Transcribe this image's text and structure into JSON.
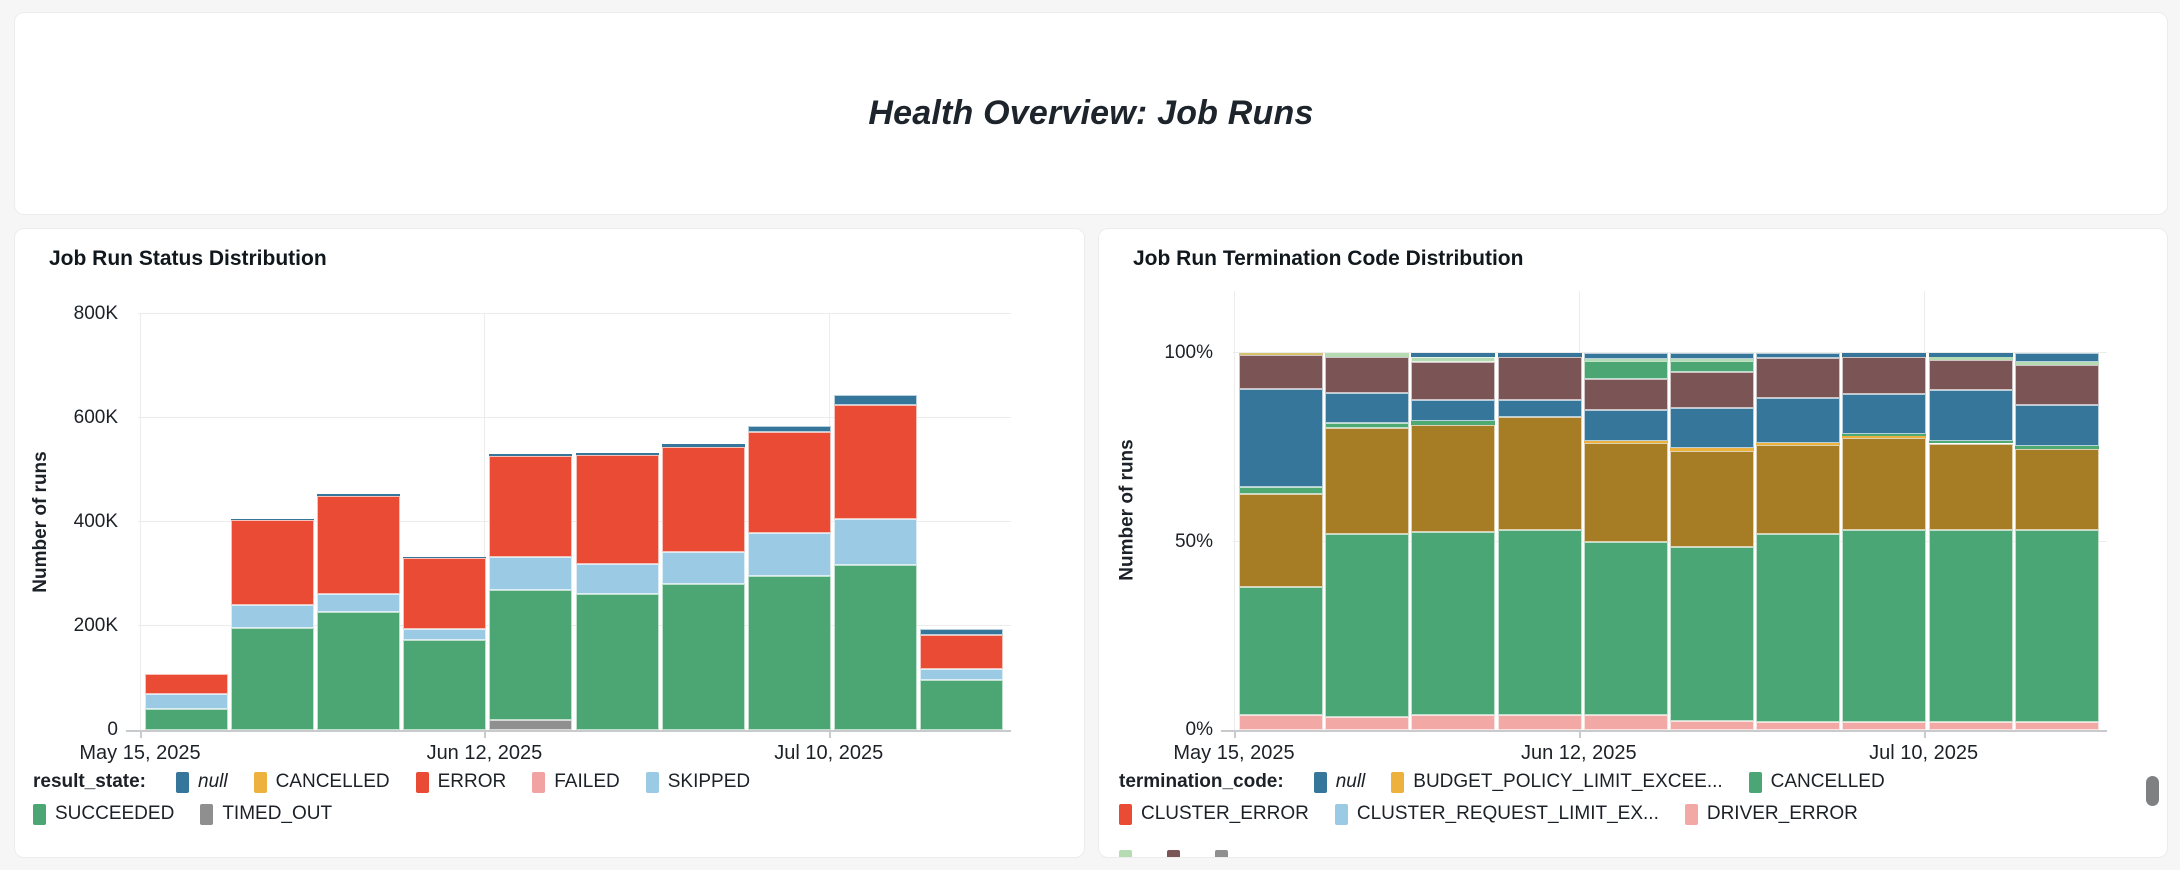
{
  "page": {
    "background": "#f6f6f7",
    "card_color": "#ffffff"
  },
  "header": {
    "title": "Health Overview: Job Runs"
  },
  "scrollbar": {
    "present": true,
    "color": "#7f8082"
  },
  "chart_data": [
    {
      "type": "bar",
      "stacked": true,
      "title": "Job Run Status Distribution",
      "xlabel": "",
      "ylabel": "Number of runs",
      "ylim": [
        0,
        800000
      ],
      "y_tick_labels": [
        "0",
        "200K",
        "400K",
        "600K",
        "800K"
      ],
      "x_tick_labels": [
        "May 15, 2025",
        "Jun 12, 2025",
        "Jul 10, 2025"
      ],
      "x_tick_slots": [
        0,
        4,
        8
      ],
      "n_bars": 10,
      "grid": true,
      "series": [
        {
          "name": "TIMED_OUT",
          "color": "#8F8F8F",
          "values": [
            0,
            0,
            0,
            0,
            20000,
            0,
            0,
            0,
            0,
            0
          ]
        },
        {
          "name": "SUCCEEDED",
          "color": "#4BA674",
          "values": [
            40000,
            196000,
            227000,
            173000,
            250000,
            262000,
            280000,
            296000,
            318000,
            97000
          ]
        },
        {
          "name": "SKIPPED",
          "color": "#9BCAE4",
          "values": [
            29000,
            44000,
            35000,
            21000,
            63000,
            58000,
            62000,
            82000,
            88000,
            20000
          ]
        },
        {
          "name": "ERROR",
          "color": "#E94B35",
          "values": [
            39000,
            164000,
            188000,
            137000,
            193000,
            208000,
            203000,
            196000,
            219000,
            66000
          ]
        },
        {
          "name": "null",
          "color": "#36769B",
          "values": [
            0,
            1000,
            4000,
            2000,
            4000,
            4000,
            5000,
            10000,
            20000,
            12000
          ]
        }
      ],
      "legend": {
        "title": "result_state:",
        "items": [
          {
            "label": "null",
            "color": "#36769B",
            "italic": true
          },
          {
            "label": "CANCELLED",
            "color": "#ECB23D"
          },
          {
            "label": "ERROR",
            "color": "#E94B35"
          },
          {
            "label": "FAILED",
            "color": "#F0A3A2"
          },
          {
            "label": "SKIPPED",
            "color": "#9BCAE4"
          },
          {
            "label": "SUCCEEDED",
            "color": "#4BA674"
          },
          {
            "label": "TIMED_OUT",
            "color": "#8F8F8F"
          }
        ]
      }
    },
    {
      "type": "bar",
      "stacked": true,
      "percent": true,
      "title": "Job Run Termination Code Distribution",
      "xlabel": "",
      "ylabel": "Number of runs",
      "ylim": [
        0,
        100
      ],
      "y_tick_labels": [
        "0%",
        "50%",
        "100%"
      ],
      "x_tick_labels": [
        "May 15, 2025",
        "Jun 12, 2025",
        "Jul 10, 2025"
      ],
      "x_tick_slots": [
        0,
        4,
        8
      ],
      "n_bars": 10,
      "grid": true,
      "series": [
        {
          "name": "DRIVER_ERROR",
          "color": "#F2A9A5",
          "values": [
            4,
            3.5,
            4,
            4,
            4,
            2.5,
            2,
            2,
            2,
            2
          ]
        },
        {
          "name": "CANCELLED",
          "color": "#4AA674",
          "values": [
            34,
            48.5,
            48.5,
            49,
            46,
            46,
            50,
            51,
            51,
            51
          ]
        },
        {
          "name": "",
          "color": "#A67C25",
          "values": [
            24.5,
            28,
            28.5,
            30,
            26,
            25.5,
            23.5,
            24.5,
            23,
            21.5
          ]
        },
        {
          "name": "",
          "color": "#ECB23D",
          "values": [
            0,
            0,
            0,
            0,
            0.7,
            0.7,
            0.7,
            0.5,
            0,
            0
          ]
        },
        {
          "name": "",
          "color": "#4FA973",
          "values": [
            2,
            1.5,
            1,
            0,
            0,
            0,
            0,
            0.5,
            0.7,
            0.8
          ]
        },
        {
          "name": "null",
          "color": "#36769B",
          "values": [
            26,
            8,
            5.5,
            4.5,
            8.3,
            10.8,
            12,
            10.5,
            13.5,
            11
          ]
        },
        {
          "name": "",
          "color": "#7B5455",
          "values": [
            9,
            9.5,
            10,
            11.5,
            8,
            9.5,
            10.5,
            10,
            8,
            10.5
          ]
        },
        {
          "name": "",
          "color": "#4BA674",
          "values": [
            0,
            0,
            0,
            0,
            5,
            3,
            0,
            0,
            0,
            0
          ]
        },
        {
          "name": "",
          "color": "#B5DBB2",
          "values": [
            0,
            1,
            1.5,
            0,
            0.5,
            0.5,
            0,
            0,
            0.8,
            0.7
          ]
        },
        {
          "name": "",
          "color": "#36769B",
          "values": [
            0,
            0,
            1,
            1,
            1.5,
            1.5,
            1.3,
            1,
            1,
            2.5
          ]
        },
        {
          "name": "",
          "color": "#D6C26A",
          "values": [
            0.5,
            0,
            0,
            0,
            0,
            0,
            0,
            0,
            0,
            0
          ]
        }
      ],
      "legend": {
        "title": "termination_code:",
        "items": [
          {
            "label": "null",
            "color": "#36769B",
            "italic": true
          },
          {
            "label": "BUDGET_POLICY_LIMIT_EXCEE...",
            "color": "#ECB23D"
          },
          {
            "label": "CANCELLED",
            "color": "#4AA674"
          },
          {
            "label": "CLUSTER_ERROR",
            "color": "#E94B35"
          },
          {
            "label": "CLUSTER_REQUEST_LIMIT_EX...",
            "color": "#9BCAE4"
          },
          {
            "label": "DRIVER_ERROR",
            "color": "#F2A9A5"
          },
          {
            "label": "",
            "color": "#B5DBB2"
          },
          {
            "label": "",
            "color": "#7B5455"
          },
          {
            "label": "",
            "color": "#8F8F8F"
          }
        ]
      }
    }
  ]
}
